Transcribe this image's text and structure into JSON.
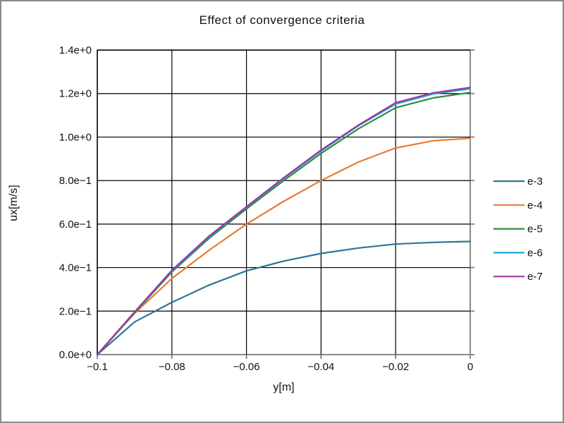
{
  "frame": {
    "border_color": "#8a8a8a",
    "background": "#ffffff"
  },
  "chart_data": {
    "type": "line",
    "title": "Effect of convergence criteria",
    "xlabel": "y[m]",
    "ylabel": "ux[m/s]",
    "xlim": [
      -0.1,
      0
    ],
    "ylim": [
      0,
      1.4
    ],
    "grid": true,
    "grid_color": "#000000",
    "axis_color": "#8a8a8a",
    "legend_position": "right-outside",
    "x_ticks": [
      -0.1,
      -0.08,
      -0.06,
      -0.04,
      -0.02,
      0
    ],
    "x_tick_labels": [
      "−0.1",
      "−0.08",
      "−0.06",
      "−0.04",
      "−0.02",
      "0"
    ],
    "y_ticks": [
      0,
      0.2,
      0.4,
      0.6,
      0.8,
      1.0,
      1.2,
      1.4
    ],
    "y_tick_labels": [
      "0.0e+0",
      "2.0e−1",
      "4.0e−1",
      "6.0e−1",
      "8.0e−1",
      "1.0e+0",
      "1.2e+0",
      "1.4e+0"
    ],
    "x": [
      -0.1,
      -0.09,
      -0.08,
      -0.07,
      -0.06,
      -0.05,
      -0.04,
      -0.03,
      -0.02,
      -0.01,
      0.0
    ],
    "series": [
      {
        "name": "e-3",
        "color": "#2d7598",
        "values": [
          0.0,
          0.15,
          0.24,
          0.32,
          0.385,
          0.43,
          0.465,
          0.49,
          0.508,
          0.516,
          0.52
        ]
      },
      {
        "name": "e-4",
        "color": "#e87b2e",
        "values": [
          0.0,
          0.19,
          0.35,
          0.48,
          0.6,
          0.705,
          0.8,
          0.885,
          0.95,
          0.983,
          0.995
        ]
      },
      {
        "name": "e-5",
        "color": "#2f8b3d",
        "values": [
          0.0,
          0.192,
          0.38,
          0.535,
          0.67,
          0.8,
          0.925,
          1.038,
          1.135,
          1.18,
          1.205
        ]
      },
      {
        "name": "e-6",
        "color": "#1ba3e0",
        "values": [
          0.0,
          0.195,
          0.385,
          0.542,
          0.678,
          0.81,
          0.936,
          1.052,
          1.152,
          1.198,
          1.222
        ]
      },
      {
        "name": "e-7",
        "color": "#a136a0",
        "values": [
          0.0,
          0.196,
          0.388,
          0.545,
          0.68,
          0.813,
          0.94,
          1.055,
          1.158,
          1.203,
          1.228
        ]
      }
    ]
  }
}
